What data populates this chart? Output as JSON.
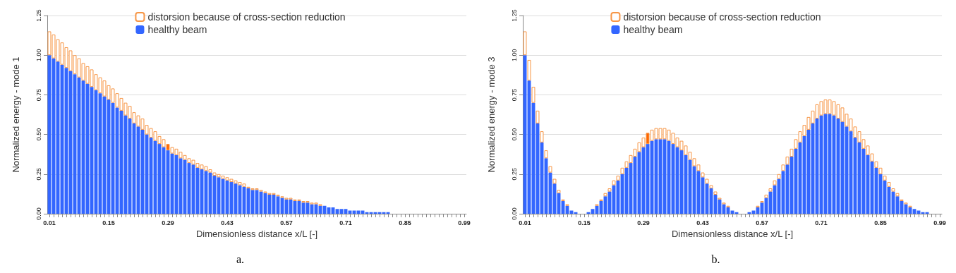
{
  "chart_data": [
    {
      "type": "bar",
      "stacked": true,
      "xlabel": "Dimensionless distance x/L [-]",
      "ylabel": "Normalized energy - mode 1",
      "annotations": [
        "a."
      ],
      "legend": "top",
      "grid": "y",
      "ylim": [
        0,
        1.25
      ],
      "yticks": [
        {
          "value": 0,
          "label": "0.00"
        },
        {
          "value": 0.25,
          "label": "0.25"
        },
        {
          "value": 0.5,
          "label": "0.50"
        },
        {
          "value": 0.75,
          "label": "0.75"
        },
        {
          "value": 1,
          "label": "1.00"
        },
        {
          "value": 1.25,
          "label": "1.25"
        }
      ],
      "categories": [
        "0.01",
        null,
        null,
        null,
        null,
        null,
        null,
        null,
        null,
        null,
        null,
        null,
        null,
        null,
        "0.15",
        null,
        null,
        null,
        null,
        null,
        null,
        null,
        null,
        null,
        null,
        null,
        null,
        null,
        "0.29",
        null,
        null,
        null,
        null,
        null,
        null,
        null,
        null,
        null,
        null,
        null,
        null,
        null,
        "0.43",
        null,
        null,
        null,
        null,
        null,
        null,
        null,
        null,
        null,
        null,
        null,
        null,
        null,
        "0.57",
        null,
        null,
        null,
        null,
        null,
        null,
        null,
        null,
        null,
        null,
        null,
        null,
        null,
        "0.71",
        null,
        null,
        null,
        null,
        null,
        null,
        null,
        null,
        null,
        null,
        null,
        null,
        null,
        "0.85",
        null,
        null,
        null,
        null,
        null,
        null,
        null,
        null,
        null,
        null,
        null,
        null,
        null,
        "0.99"
      ],
      "series": [
        {
          "name": "healthy beam",
          "color": "#3366ff",
          "values": [
            1.0,
            0.98,
            0.96,
            0.94,
            0.92,
            0.9,
            0.88,
            0.86,
            0.84,
            0.82,
            0.8,
            0.78,
            0.76,
            0.74,
            0.72,
            0.7,
            0.67,
            0.65,
            0.62,
            0.6,
            0.57,
            0.55,
            0.53,
            0.5,
            0.48,
            0.46,
            0.44,
            0.42,
            0.4,
            0.38,
            0.37,
            0.35,
            0.34,
            0.32,
            0.31,
            0.29,
            0.28,
            0.27,
            0.26,
            0.24,
            0.23,
            0.22,
            0.21,
            0.2,
            0.19,
            0.18,
            0.17,
            0.16,
            0.15,
            0.15,
            0.14,
            0.13,
            0.12,
            0.12,
            0.11,
            0.1,
            0.09,
            0.09,
            0.08,
            0.08,
            0.07,
            0.07,
            0.06,
            0.06,
            0.05,
            0.05,
            0.04,
            0.04,
            0.03,
            0.03,
            0.03,
            0.02,
            0.02,
            0.02,
            0.02,
            0.01,
            0.01,
            0.01,
            0.01,
            0.01,
            0.01,
            0,
            0,
            0,
            0,
            0,
            0,
            0,
            0,
            0,
            0,
            0,
            0,
            0,
            0,
            0,
            0,
            0,
            0
          ]
        },
        {
          "name": "distorsion because of cross-section reduction",
          "color": "#f79646",
          "values": [
            0.15,
            0.15,
            0.14,
            0.14,
            0.13,
            0.13,
            0.12,
            0.12,
            0.11,
            0.11,
            0.11,
            0.1,
            0.1,
            0.1,
            0.09,
            0.09,
            0.09,
            0.08,
            0.08,
            0.08,
            0.07,
            0.07,
            0.07,
            0.06,
            0.06,
            0.06,
            0.05,
            0.05,
            0.04,
            0.04,
            0.04,
            0.04,
            0.03,
            0.03,
            0.03,
            0.03,
            0.03,
            0.03,
            0.02,
            0.02,
            0.02,
            0.02,
            0.02,
            0.02,
            0.02,
            0.02,
            0.02,
            0.01,
            0.01,
            0.01,
            0.01,
            0.01,
            0.01,
            0.01,
            0.01,
            0.01,
            0.01,
            0.01,
            0.01,
            0.01,
            0.01,
            0.01,
            0.01,
            0.01,
            0.01,
            0,
            0,
            0,
            0,
            0,
            0,
            0,
            0,
            0,
            0,
            0,
            0,
            0,
            0,
            0,
            0,
            0,
            0,
            0,
            0,
            0,
            0,
            0,
            0,
            0,
            0,
            0,
            0,
            0,
            0,
            0,
            0,
            0,
            0
          ],
          "colors": [
            "#ffffff",
            "#ffffff",
            "#ffffff",
            "#ffffff",
            "#ffffff",
            "#ffffff",
            "#ffffff",
            "#ffffff",
            "#ffffff",
            "#ffffff",
            "#ffffff",
            "#ffffff",
            "#ffffff",
            "#ffffff",
            "#ffffff",
            "#ffffff",
            "#ffffff",
            "#ffffff",
            "#ffffff",
            "#ffffff",
            "#ffffff",
            "#ffffff",
            "#ffffff",
            "#ffffff",
            "#ffffff",
            "#ffffff",
            "#ffffff",
            "#ffffff",
            "#ff6600",
            "#ffffff",
            "#ffffff",
            "#ffffff",
            "#ffffff",
            "#ffffff",
            "#ffffff",
            "#ffffff",
            "#ffffff",
            "#ffffff",
            "#ffffff",
            "#ffffff",
            "#ffffff",
            "#ffffff",
            "#ffffff",
            "#ffffff",
            "#ffffff",
            "#ffffff",
            "#ffffff",
            "#ffffff",
            "#ffffff",
            "#ffffff",
            "#ffffff",
            "#ffffff",
            "#ffffff",
            "#ffffff",
            "#ffffff",
            "#ffffff",
            "#ffffff",
            "#ffffff",
            "#ffffff",
            "#ffffff",
            "#ffffff",
            "#ffffff",
            "#ffffff",
            "#ffffff",
            "#ffffff",
            "#ffffff",
            "#ffffff",
            "#ffffff",
            "#ffffff",
            "#ffffff",
            "#ffffff",
            "#ffffff",
            "#ffffff",
            "#ffffff",
            "#ffffff",
            "#ffffff",
            "#ffffff",
            "#ffffff",
            "#ffffff",
            "#ffffff",
            "#ffffff",
            "#ffffff",
            "#ffffff",
            "#ffffff",
            "#ffffff",
            "#ffffff",
            "#ffffff",
            "#ffffff",
            "#ffffff",
            "#ffffff",
            "#ffffff",
            "#ffffff",
            "#ffffff",
            "#ffffff",
            "#ffffff",
            "#ffffff",
            "#ffffff",
            "#ffffff",
            "#ffffff"
          ]
        }
      ]
    },
    {
      "type": "bar",
      "stacked": true,
      "xlabel": "Dimensionless distance x/L [-]",
      "ylabel": "Normalized energy - mode 3",
      "annotations": [
        "b."
      ],
      "legend": "top",
      "grid": "y",
      "ylim": [
        0,
        1.25
      ],
      "yticks": [
        {
          "value": 0,
          "label": "0.00"
        },
        {
          "value": 0.25,
          "label": "0.25"
        },
        {
          "value": 0.5,
          "label": "0.50"
        },
        {
          "value": 0.75,
          "label": "0.75"
        },
        {
          "value": 1,
          "label": "1.00"
        },
        {
          "value": 1.25,
          "label": "1.25"
        }
      ],
      "categories": [
        "0.01",
        null,
        null,
        null,
        null,
        null,
        null,
        null,
        null,
        null,
        null,
        null,
        null,
        null,
        "0.15",
        null,
        null,
        null,
        null,
        null,
        null,
        null,
        null,
        null,
        null,
        null,
        null,
        null,
        "0.29",
        null,
        null,
        null,
        null,
        null,
        null,
        null,
        null,
        null,
        null,
        null,
        null,
        null,
        "0.43",
        null,
        null,
        null,
        null,
        null,
        null,
        null,
        null,
        null,
        null,
        null,
        null,
        null,
        "0.57",
        null,
        null,
        null,
        null,
        null,
        null,
        null,
        null,
        null,
        null,
        null,
        null,
        null,
        "0.71",
        null,
        null,
        null,
        null,
        null,
        null,
        null,
        null,
        null,
        null,
        null,
        null,
        null,
        "0.85",
        null,
        null,
        null,
        null,
        null,
        null,
        null,
        null,
        null,
        null,
        null,
        null,
        null,
        "0.99"
      ],
      "series": [
        {
          "name": "healthy beam",
          "color": "#3366ff",
          "values": [
            1.0,
            0.84,
            0.7,
            0.57,
            0.45,
            0.35,
            0.26,
            0.19,
            0.13,
            0.08,
            0.05,
            0.02,
            0.01,
            0,
            0,
            0.01,
            0.03,
            0.05,
            0.08,
            0.11,
            0.14,
            0.18,
            0.21,
            0.25,
            0.29,
            0.32,
            0.36,
            0.39,
            0.42,
            0.44,
            0.46,
            0.47,
            0.47,
            0.47,
            0.46,
            0.44,
            0.42,
            0.4,
            0.37,
            0.34,
            0.3,
            0.27,
            0.23,
            0.19,
            0.16,
            0.12,
            0.09,
            0.06,
            0.04,
            0.02,
            0.01,
            0,
            0,
            0.01,
            0.02,
            0.04,
            0.07,
            0.1,
            0.14,
            0.18,
            0.22,
            0.27,
            0.31,
            0.36,
            0.41,
            0.45,
            0.49,
            0.53,
            0.57,
            0.6,
            0.62,
            0.63,
            0.63,
            0.62,
            0.6,
            0.58,
            0.55,
            0.52,
            0.48,
            0.45,
            0.41,
            0.37,
            0.33,
            0.29,
            0.25,
            0.21,
            0.17,
            0.14,
            0.11,
            0.08,
            0.06,
            0.04,
            0.03,
            0.02,
            0.01,
            0.01,
            0,
            0,
            0
          ]
        },
        {
          "name": "distorsion because of cross-section reduction",
          "color": "#f79646",
          "values": [
            0.15,
            0.13,
            0.1,
            0.08,
            0.07,
            0.05,
            0.04,
            0.03,
            0.02,
            0.01,
            0.01,
            0,
            0,
            0,
            0,
            0,
            0,
            0.01,
            0.01,
            0.02,
            0.02,
            0.03,
            0.03,
            0.04,
            0.04,
            0.05,
            0.05,
            0.06,
            0.06,
            0.07,
            0.07,
            0.07,
            0.07,
            0.07,
            0.07,
            0.07,
            0.06,
            0.06,
            0.06,
            0.05,
            0.05,
            0.04,
            0.03,
            0.03,
            0.02,
            0.02,
            0.01,
            0.01,
            0.01,
            0,
            0,
            0,
            0,
            0,
            0,
            0.01,
            0.01,
            0.02,
            0.02,
            0.03,
            0.03,
            0.04,
            0.05,
            0.05,
            0.06,
            0.07,
            0.07,
            0.08,
            0.08,
            0.09,
            0.09,
            0.09,
            0.09,
            0.09,
            0.09,
            0.09,
            0.08,
            0.08,
            0.07,
            0.07,
            0.06,
            0.06,
            0.05,
            0.04,
            0.04,
            0.03,
            0.03,
            0.02,
            0.02,
            0.01,
            0.01,
            0.01,
            0,
            0,
            0,
            0,
            0,
            0,
            0
          ],
          "colors": [
            "#ffffff",
            "#ffffff",
            "#ffffff",
            "#ffffff",
            "#ffffff",
            "#ffffff",
            "#ffffff",
            "#ffffff",
            "#ffffff",
            "#ffffff",
            "#ffffff",
            "#ffffff",
            "#ffffff",
            "#ffffff",
            "#ffffff",
            "#ffffff",
            "#ffffff",
            "#ffffff",
            "#ffffff",
            "#ffffff",
            "#ffffff",
            "#ffffff",
            "#ffffff",
            "#ffffff",
            "#ffffff",
            "#ffffff",
            "#ffffff",
            "#ffffff",
            "#ffffff",
            "#ff6600",
            "#ffffff",
            "#ffffff",
            "#ffffff",
            "#ffffff",
            "#ffffff",
            "#ffffff",
            "#ffffff",
            "#ffffff",
            "#ffffff",
            "#ffffff",
            "#ffffff",
            "#ffffff",
            "#ffffff",
            "#ffffff",
            "#ffffff",
            "#ffffff",
            "#ffffff",
            "#ffffff",
            "#ffffff",
            "#ffffff",
            "#ffffff",
            "#ffffff",
            "#ffffff",
            "#ffffff",
            "#ffffff",
            "#ffffff",
            "#ffffff",
            "#ffffff",
            "#ffffff",
            "#ffffff",
            "#ffffff",
            "#ffffff",
            "#ffffff",
            "#ffffff",
            "#ffffff",
            "#ffffff",
            "#ffffff",
            "#ffffff",
            "#ffffff",
            "#ffffff",
            "#ffffff",
            "#ffffff",
            "#ffffff",
            "#ffffff",
            "#ffffff",
            "#ffffff",
            "#ffffff",
            "#ffffff",
            "#ffffff",
            "#ffffff",
            "#ffffff",
            "#ffffff",
            "#ffffff",
            "#ffffff",
            "#ffffff",
            "#ffffff",
            "#ffffff",
            "#ffffff",
            "#ffffff",
            "#ffffff",
            "#ffffff",
            "#ffffff",
            "#ffffff",
            "#ffffff",
            "#ffffff",
            "#ffffff",
            "#ffffff",
            "#ffffff",
            "#ffffff"
          ]
        }
      ]
    }
  ]
}
